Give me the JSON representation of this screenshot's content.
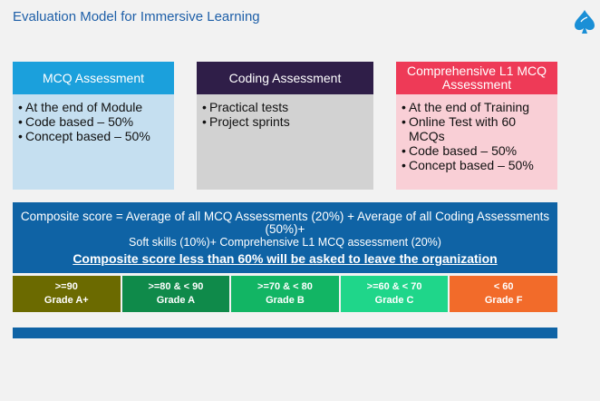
{
  "title": "Evaluation Model for Immersive Learning",
  "logo_icon": "spade-leaf-icon",
  "cards": {
    "mcq": {
      "heading": "MCQ Assessment",
      "items": [
        "At the end of Module",
        "Code based – 50%",
        "Concept based – 50%"
      ]
    },
    "coding": {
      "heading": "Coding Assessment",
      "items": [
        "Practical tests",
        "Project sprints"
      ]
    },
    "comprehensive": {
      "heading": "Comprehensive  L1 MCQ Assessment",
      "items": [
        "At the end of Training",
        "Online Test with 60 MCQs",
        "Code based – 50%",
        "Concept based – 50%"
      ]
    }
  },
  "composite": {
    "formula_line1": "Composite score = Average of all MCQ Assessments (20%) + Average of all Coding Assessments (50%)+",
    "formula_line2": "Soft skills (10%)+ Comprehensive L1 MCQ assessment (20%)",
    "warning": "Composite score less than 60% will be asked to leave the organization"
  },
  "grades": [
    {
      "range": ">=90",
      "grade": "Grade A+",
      "color": "#6b6a00"
    },
    {
      "range": ">=80 & < 90",
      "grade": "Grade A",
      "color": "#0f8a4a"
    },
    {
      "range": ">=70 & < 80",
      "grade": "Grade B",
      "color": "#12b564"
    },
    {
      "range": ">=60 & < 70",
      "grade": "Grade C",
      "color": "#1fd68a"
    },
    {
      "range": "< 60",
      "grade": "Grade F",
      "color": "#f26b2a"
    }
  ],
  "colors": {
    "title": "#1e5fa8",
    "mcq_header": "#1ba0dc",
    "coding_header": "#2f1e48",
    "comprehensive_header": "#ee3a57",
    "composite_bg": "#0f63a5"
  }
}
